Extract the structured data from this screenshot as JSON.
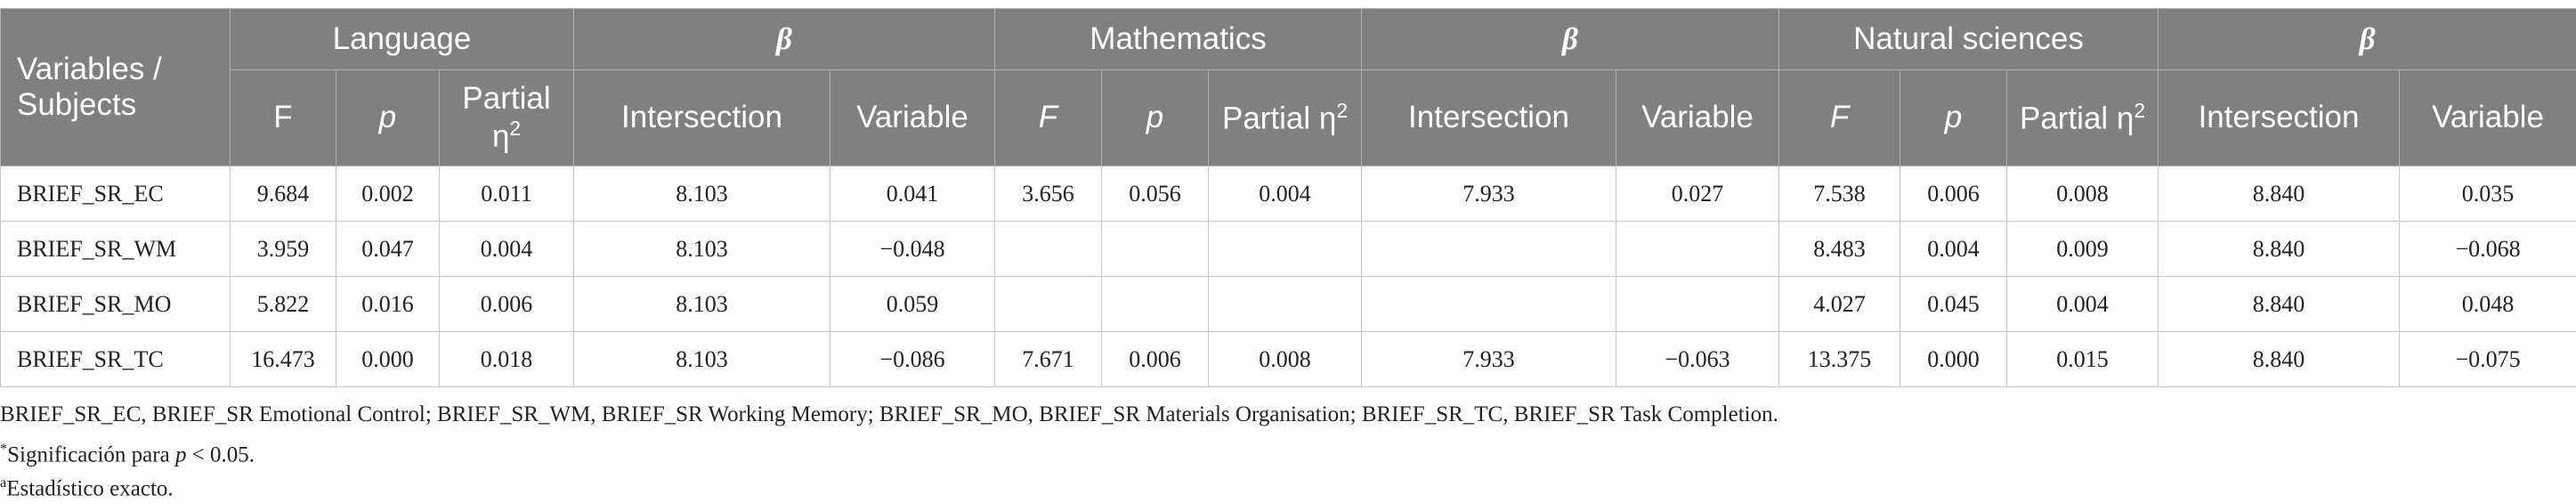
{
  "table": {
    "header": {
      "corner": "Variables / Subjects",
      "groups": [
        "Language",
        "β",
        "Mathematics",
        "β",
        "Natural sciences",
        "β"
      ],
      "columns": [
        {
          "text": "F"
        },
        {
          "text": "p"
        },
        {
          "text": "Partial η",
          "sup": "2"
        },
        {
          "text": "Intersection"
        },
        {
          "text": "Variable"
        },
        {
          "text": "F"
        },
        {
          "text": "p"
        },
        {
          "text": "Partial η",
          "sup": "2"
        },
        {
          "text": "Intersection"
        },
        {
          "text": "Variable"
        },
        {
          "text": "F"
        },
        {
          "text": "p"
        },
        {
          "text": "Partial η",
          "sup": "2"
        },
        {
          "text": "Intersection"
        },
        {
          "text": "Variable"
        }
      ]
    },
    "rows": [
      [
        "BRIEF_SR_EC",
        "9.684",
        "0.002",
        "0.011",
        "8.103",
        "0.041",
        "3.656",
        "0.056",
        "0.004",
        "7.933",
        "0.027",
        "7.538",
        "0.006",
        "0.008",
        "8.840",
        "0.035"
      ],
      [
        "BRIEF_SR_WM",
        "3.959",
        "0.047",
        "0.004",
        "8.103",
        "−0.048",
        null,
        null,
        null,
        null,
        null,
        "8.483",
        "0.004",
        "0.009",
        "8.840",
        "−0.068"
      ],
      [
        "BRIEF_SR_MO",
        "5.822",
        "0.016",
        "0.006",
        "8.103",
        "0.059",
        null,
        null,
        null,
        null,
        null,
        "4.027",
        "0.045",
        "0.004",
        "8.840",
        "0.048"
      ],
      [
        "BRIEF_SR_TC",
        "16.473",
        "0.000",
        "0.018",
        "8.103",
        "−0.086",
        "7.671",
        "0.006",
        "0.008",
        "7.933",
        "−0.063",
        "13.375",
        "0.000",
        "0.015",
        "8.840",
        "−0.075"
      ]
    ]
  },
  "footnotes": [
    {
      "text": "BRIEF_SR_EC, BRIEF_SR Emotional Control; BRIEF_SR_WM, BRIEF_SR Working Memory; BRIEF_SR_MO, BRIEF_SR Materials Organisation; BRIEF_SR_TC, BRIEF_SR Task Completion."
    },
    {
      "mark": "*",
      "text": "Significación para ",
      "italic": "p",
      "after": " < 0.05."
    },
    {
      "mark": "a",
      "text": "Estadístico exacto."
    }
  ]
}
